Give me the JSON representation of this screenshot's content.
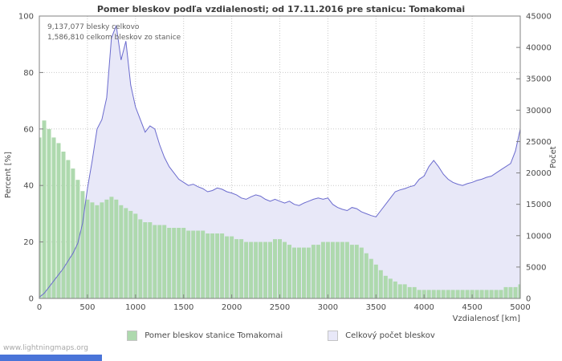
{
  "title": "Pomer bleskov podľa vzdialenosti; od 17.11.2016 pre stanicu: Tomakomai",
  "annotations": {
    "line1": "9,137,077 blesky celkovo",
    "line2": "1,586,810 celkom bleskov zo stanice"
  },
  "watermark": "www.lightningmaps.org",
  "legend": [
    {
      "label": "Pomer bleskov stanice Tomakomai",
      "color": "#aed9ae"
    },
    {
      "label": "Celkový počet bleskov",
      "color": "#e8e8f8"
    }
  ],
  "colors": {
    "green_fill": "#aed9ae",
    "lavender_fill": "#e8e8f8",
    "blue_line": "#6b6bce",
    "grid": "#c9c9c9",
    "frame": "#808080",
    "footer_bar": "#4a74d8"
  },
  "chart_data": {
    "type": "area",
    "title": "Pomer bleskov podľa vzdialenosti; od 17.11.2016 pre stanicu: Tomakomai",
    "xlabel": "Vzdialenosť   [km]",
    "ylabel_left": "Percent   [%]",
    "ylabel_right": "Počet",
    "x_ticks": [
      0,
      500,
      1000,
      1500,
      2000,
      2500,
      3000,
      3500,
      4000,
      4500,
      5000
    ],
    "y_left": {
      "min": 0,
      "max": 100,
      "ticks": [
        0,
        20,
        40,
        60,
        80,
        100
      ]
    },
    "y_right": {
      "min": 0,
      "max": 45000,
      "ticks": [
        0,
        5000,
        10000,
        15000,
        20000,
        25000,
        30000,
        35000,
        40000,
        45000
      ]
    },
    "grid": true,
    "legend_position": "bottom",
    "x": [
      0,
      50,
      100,
      150,
      200,
      250,
      300,
      350,
      400,
      450,
      500,
      550,
      600,
      650,
      700,
      750,
      800,
      850,
      900,
      950,
      1000,
      1050,
      1100,
      1150,
      1200,
      1250,
      1300,
      1350,
      1400,
      1450,
      1500,
      1550,
      1600,
      1650,
      1700,
      1750,
      1800,
      1850,
      1900,
      1950,
      2000,
      2050,
      2100,
      2150,
      2200,
      2250,
      2300,
      2350,
      2400,
      2450,
      2500,
      2550,
      2600,
      2650,
      2700,
      2750,
      2800,
      2850,
      2900,
      2950,
      3000,
      3050,
      3100,
      3150,
      3200,
      3250,
      3300,
      3350,
      3400,
      3450,
      3500,
      3550,
      3600,
      3650,
      3700,
      3750,
      3800,
      3850,
      3900,
      3950,
      4000,
      4050,
      4100,
      4150,
      4200,
      4250,
      4300,
      4350,
      4400,
      4450,
      4500,
      4550,
      4600,
      4650,
      4700,
      4750,
      4800,
      4850,
      4900,
      4950,
      5000
    ],
    "series": [
      {
        "name": "Pomer bleskov stanice Tomakomai",
        "axis": "left",
        "style": "bars",
        "color": "#aed9ae",
        "values": [
          57,
          63,
          60,
          57,
          55,
          52,
          49,
          46,
          42,
          38,
          35,
          34,
          33,
          34,
          35,
          36,
          35,
          33,
          32,
          31,
          30,
          28,
          27,
          27,
          26,
          26,
          26,
          25,
          25,
          25,
          25,
          24,
          24,
          24,
          24,
          23,
          23,
          23,
          23,
          22,
          22,
          21,
          21,
          20,
          20,
          20,
          20,
          20,
          20,
          21,
          21,
          20,
          19,
          18,
          18,
          18,
          18,
          19,
          19,
          20,
          20,
          20,
          20,
          20,
          20,
          19,
          19,
          18,
          16,
          14,
          12,
          10,
          8,
          7,
          6,
          5,
          5,
          4,
          4,
          3,
          3,
          3,
          3,
          3,
          3,
          3,
          3,
          3,
          3,
          3,
          3,
          3,
          3,
          3,
          3,
          3,
          3,
          4,
          4,
          4,
          5
        ]
      },
      {
        "name": "Celkový počet bleskov",
        "axis": "right",
        "style": "area-line",
        "fill": "#e8e8f8",
        "stroke": "#6b6bce",
        "values": [
          200,
          800,
          1800,
          2800,
          3800,
          4800,
          6000,
          7200,
          8800,
          12000,
          17500,
          22000,
          27000,
          28500,
          32000,
          41500,
          43500,
          38000,
          41000,
          34000,
          30500,
          28500,
          26500,
          27500,
          27000,
          24500,
          22500,
          21000,
          20000,
          19000,
          18500,
          18000,
          18200,
          17800,
          17500,
          17000,
          17200,
          17600,
          17400,
          17000,
          16800,
          16500,
          16000,
          15800,
          16200,
          16500,
          16300,
          15800,
          15500,
          15800,
          15500,
          15200,
          15500,
          15000,
          14800,
          15200,
          15500,
          15800,
          16000,
          15800,
          16000,
          15000,
          14500,
          14200,
          14000,
          14500,
          14300,
          13800,
          13500,
          13200,
          13000,
          14000,
          15000,
          16000,
          17000,
          17300,
          17500,
          17800,
          18000,
          19000,
          19500,
          21000,
          22000,
          21000,
          19800,
          19000,
          18500,
          18200,
          18000,
          18300,
          18500,
          18800,
          19000,
          19300,
          19500,
          20000,
          20500,
          21000,
          21500,
          23500,
          27000
        ]
      }
    ]
  }
}
